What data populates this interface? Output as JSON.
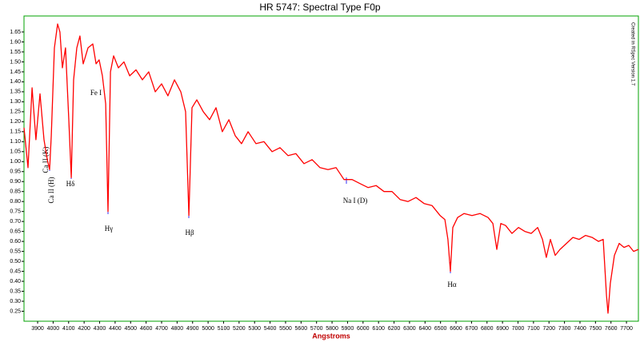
{
  "chart_data": {
    "type": "line",
    "title": "HR 5747: Spectral Type F0p",
    "x_label": "Angstroms",
    "credit": "Created in RSpec Version 1.7",
    "annotations": [
      "Ca II (K)",
      "Ca II (H)",
      "Hδ",
      "Hγ",
      "Fe I",
      "Hβ",
      "Na I (D)",
      "Hα"
    ],
    "color": "#ff0000",
    "frame_color": "#00a000",
    "xlim": [
      3812,
      7777
    ],
    "ylim": [
      0.2,
      1.73
    ],
    "xticks": [
      3900,
      4000,
      4100,
      4200,
      4300,
      4400,
      4500,
      4600,
      4700,
      4800,
      4900,
      5000,
      5100,
      5200,
      5300,
      5400,
      5500,
      5600,
      5700,
      5800,
      5900,
      6000,
      6100,
      6200,
      6300,
      6400,
      6500,
      6600,
      6700,
      6800,
      6900,
      7000,
      7100,
      7200,
      7300,
      7400,
      7500,
      7600,
      7700
    ],
    "yticks": [
      0.25,
      {
        "value": 0.3,
        "label": "0.30"
      },
      0.35,
      {
        "value": 0.4,
        "label": "0.40"
      },
      0.45,
      {
        "value": 0.5,
        "label": "0.50"
      },
      0.55,
      {
        "value": 0.6,
        "label": "0.60"
      },
      0.65,
      {
        "value": 0.7,
        "label": "0.70"
      },
      0.75,
      {
        "value": 0.8,
        "label": "0.80"
      },
      0.85,
      {
        "value": 0.9,
        "label": "0.90"
      },
      0.95,
      {
        "value": 1,
        "label": "1.00"
      },
      1.05,
      {
        "value": 1.1,
        "label": "1.10"
      },
      1.15,
      {
        "value": 1.2,
        "label": "1.20"
      },
      1.25,
      {
        "value": 1.3,
        "label": "1.30"
      },
      1.35,
      {
        "value": 1.4,
        "label": "1.40"
      },
      1.45,
      {
        "value": 1.5,
        "label": "1.50"
      },
      1.55,
      {
        "value": 1.6,
        "label": "1.60"
      },
      1.65
    ],
    "x": [
      3812,
      3838,
      3864,
      3889,
      3915,
      3941,
      3962,
      3977,
      3988,
      4008,
      4029,
      4044,
      4060,
      4080,
      4101,
      4117,
      4132,
      4153,
      4173,
      4194,
      4225,
      4256,
      4277,
      4297,
      4318,
      4339,
      4354,
      4370,
      4390,
      4421,
      4457,
      4494,
      4535,
      4576,
      4617,
      4659,
      4700,
      4741,
      4783,
      4824,
      4855,
      4876,
      4896,
      4927,
      4969,
      5010,
      5051,
      5092,
      5134,
      5175,
      5216,
      5258,
      5309,
      5361,
      5413,
      5464,
      5516,
      5567,
      5619,
      5671,
      5722,
      5774,
      5826,
      5877,
      5929,
      5980,
      6032,
      6084,
      6135,
      6187,
      6239,
      6290,
      6342,
      6394,
      6445,
      6497,
      6528,
      6548,
      6564,
      6579,
      6610,
      6652,
      6703,
      6755,
      6807,
      6838,
      6863,
      6889,
      6920,
      6961,
      7003,
      7044,
      7085,
      7127,
      7158,
      7183,
      7209,
      7240,
      7271,
      7313,
      7354,
      7395,
      7436,
      7478,
      7519,
      7550,
      7571,
      7581,
      7596,
      7622,
      7653,
      7684,
      7715,
      7746,
      7777
    ],
    "values": [
      1.17,
      0.97,
      1.37,
      1.11,
      1.34,
      1.11,
      1.01,
      0.96,
      1.13,
      1.57,
      1.69,
      1.65,
      1.47,
      1.57,
      1.21,
      0.92,
      1.41,
      1.57,
      1.63,
      1.49,
      1.57,
      1.59,
      1.49,
      1.51,
      1.43,
      1.29,
      0.75,
      1.45,
      1.53,
      1.47,
      1.5,
      1.43,
      1.46,
      1.41,
      1.45,
      1.35,
      1.39,
      1.33,
      1.41,
      1.35,
      1.25,
      0.73,
      1.27,
      1.31,
      1.25,
      1.21,
      1.27,
      1.15,
      1.21,
      1.13,
      1.09,
      1.15,
      1.09,
      1.1,
      1.05,
      1.07,
      1.03,
      1.04,
      0.99,
      1.01,
      0.97,
      0.96,
      0.97,
      0.91,
      0.91,
      0.89,
      0.87,
      0.88,
      0.85,
      0.85,
      0.81,
      0.8,
      0.82,
      0.79,
      0.78,
      0.73,
      0.71,
      0.61,
      0.45,
      0.67,
      0.72,
      0.74,
      0.73,
      0.74,
      0.72,
      0.69,
      0.56,
      0.69,
      0.68,
      0.64,
      0.67,
      0.65,
      0.64,
      0.67,
      0.61,
      0.52,
      0.61,
      0.53,
      0.56,
      0.59,
      0.62,
      0.61,
      0.63,
      0.62,
      0.6,
      0.61,
      0.33,
      0.24,
      0.39,
      0.53,
      0.59,
      0.57,
      0.58,
      0.55,
      0.56
    ]
  }
}
